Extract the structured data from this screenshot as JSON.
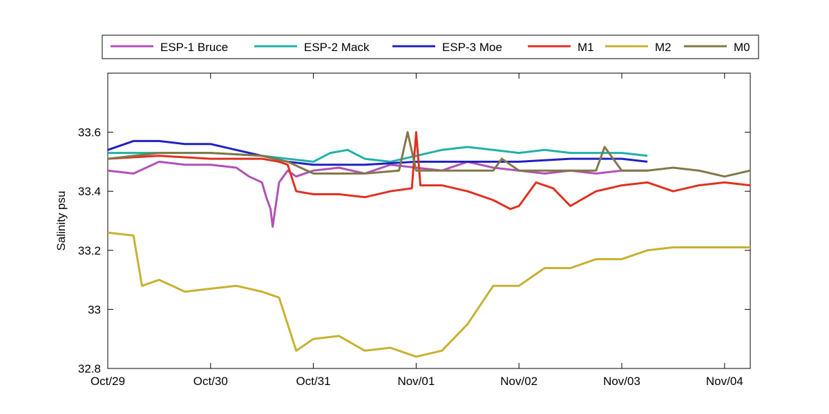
{
  "chart_data": {
    "type": "line",
    "title": "",
    "xlabel": "",
    "ylabel": "Salinity psu",
    "xlim": [
      "2008-10-29T00:00",
      "2008-11-04T06:00"
    ],
    "ylim": [
      32.8,
      33.8
    ],
    "yticks": [
      32.8,
      33,
      33.2,
      33.4,
      33.6
    ],
    "ytick_labels": [
      "32.8",
      "33",
      "33.2",
      "33.4",
      "33.6"
    ],
    "xticks": [
      "2008-10-29T00:00",
      "2008-10-30T00:00",
      "2008-10-31T00:00",
      "2008-11-01T00:00",
      "2008-11-02T00:00",
      "2008-11-03T00:00",
      "2008-11-04T00:00"
    ],
    "xtick_labels": [
      "Oct/29",
      "Oct/30",
      "Oct/31",
      "Nov/01",
      "Nov/02",
      "Nov/03",
      "Nov/04"
    ],
    "grid": false,
    "legend": "top, horizontal, outside plot",
    "series": [
      {
        "name": "ESP-1 Bruce",
        "color": "#b050b8",
        "x": [
          "2008-10-29T00:00",
          "2008-10-29T06:00",
          "2008-10-29T12:00",
          "2008-10-29T18:00",
          "2008-10-30T00:00",
          "2008-10-30T06:00",
          "2008-10-30T09:00",
          "2008-10-30T12:00",
          "2008-10-30T13:00",
          "2008-10-30T14:00",
          "2008-10-30T14:30",
          "2008-10-30T15:00",
          "2008-10-30T16:00",
          "2008-10-30T18:00",
          "2008-10-30T20:00",
          "2008-10-31T00:00",
          "2008-10-31T06:00",
          "2008-10-31T12:00",
          "2008-10-31T18:00",
          "2008-11-01T00:00",
          "2008-11-01T06:00",
          "2008-11-01T12:00",
          "2008-11-01T18:00",
          "2008-11-02T00:00",
          "2008-11-02T06:00",
          "2008-11-02T12:00",
          "2008-11-02T18:00",
          "2008-11-03T00:00",
          "2008-11-03T06:00"
        ],
        "y": [
          33.47,
          33.46,
          33.5,
          33.49,
          33.49,
          33.48,
          33.45,
          33.43,
          33.38,
          33.34,
          33.28,
          33.33,
          33.43,
          33.47,
          33.45,
          33.47,
          33.48,
          33.46,
          33.49,
          33.48,
          33.47,
          33.5,
          33.48,
          33.47,
          33.46,
          33.47,
          33.46,
          33.47,
          33.47
        ]
      },
      {
        "name": "ESP-2 Mack",
        "color": "#20b0a8",
        "x": [
          "2008-10-29T00:00",
          "2008-10-29T12:00",
          "2008-10-30T00:00",
          "2008-10-30T12:00",
          "2008-10-30T18:00",
          "2008-10-31T00:00",
          "2008-10-31T04:00",
          "2008-10-31T08:00",
          "2008-10-31T12:00",
          "2008-10-31T18:00",
          "2008-11-01T00:00",
          "2008-11-01T06:00",
          "2008-11-01T12:00",
          "2008-11-01T18:00",
          "2008-11-02T00:00",
          "2008-11-02T06:00",
          "2008-11-02T12:00",
          "2008-11-02T18:00",
          "2008-11-03T00:00",
          "2008-11-03T06:00"
        ],
        "y": [
          33.53,
          33.53,
          33.53,
          33.52,
          33.51,
          33.5,
          33.53,
          33.54,
          33.51,
          33.5,
          33.52,
          33.54,
          33.55,
          33.54,
          33.53,
          33.54,
          33.53,
          33.53,
          33.53,
          33.52
        ]
      },
      {
        "name": "ESP-3 Moe",
        "color": "#2020c0",
        "x": [
          "2008-10-29T00:00",
          "2008-10-29T06:00",
          "2008-10-29T12:00",
          "2008-10-29T18:00",
          "2008-10-30T00:00",
          "2008-10-30T06:00",
          "2008-10-30T12:00",
          "2008-10-30T18:00",
          "2008-10-31T00:00",
          "2008-10-31T12:00",
          "2008-11-01T00:00",
          "2008-11-01T12:00",
          "2008-11-02T00:00",
          "2008-11-02T12:00",
          "2008-11-03T00:00",
          "2008-11-03T06:00"
        ],
        "y": [
          33.54,
          33.57,
          33.57,
          33.56,
          33.56,
          33.54,
          33.52,
          33.5,
          33.49,
          33.49,
          33.5,
          33.5,
          33.5,
          33.51,
          33.51,
          33.5
        ]
      },
      {
        "name": "M1",
        "color": "#e03020",
        "x": [
          "2008-10-29T00:00",
          "2008-10-29T12:00",
          "2008-10-30T00:00",
          "2008-10-30T12:00",
          "2008-10-30T16:00",
          "2008-10-30T18:00",
          "2008-10-30T20:00",
          "2008-10-31T00:00",
          "2008-10-31T06:00",
          "2008-10-31T12:00",
          "2008-10-31T18:00",
          "2008-10-31T23:00",
          "2008-11-01T00:00",
          "2008-11-01T01:00",
          "2008-11-01T02:00",
          "2008-11-01T06:00",
          "2008-11-01T12:00",
          "2008-11-01T18:00",
          "2008-11-01T22:00",
          "2008-11-02T00:00",
          "2008-11-02T04:00",
          "2008-11-02T08:00",
          "2008-11-02T12:00",
          "2008-11-02T18:00",
          "2008-11-03T00:00",
          "2008-11-03T06:00",
          "2008-11-03T12:00",
          "2008-11-03T18:00",
          "2008-11-04T00:00",
          "2008-11-04T06:00"
        ],
        "y": [
          33.51,
          33.52,
          33.51,
          33.51,
          33.5,
          33.49,
          33.4,
          33.39,
          33.39,
          33.38,
          33.4,
          33.41,
          33.6,
          33.42,
          33.42,
          33.42,
          33.4,
          33.37,
          33.34,
          33.35,
          33.43,
          33.41,
          33.35,
          33.4,
          33.42,
          33.43,
          33.4,
          33.42,
          33.43,
          33.42
        ]
      },
      {
        "name": "M2",
        "color": "#c8b030",
        "x": [
          "2008-10-29T00:00",
          "2008-10-29T06:00",
          "2008-10-29T08:00",
          "2008-10-29T12:00",
          "2008-10-29T18:00",
          "2008-10-30T00:00",
          "2008-10-30T06:00",
          "2008-10-30T12:00",
          "2008-10-30T16:00",
          "2008-10-30T20:00",
          "2008-10-31T00:00",
          "2008-10-31T06:00",
          "2008-10-31T12:00",
          "2008-10-31T18:00",
          "2008-11-01T00:00",
          "2008-11-01T06:00",
          "2008-11-01T12:00",
          "2008-11-01T18:00",
          "2008-11-02T00:00",
          "2008-11-02T06:00",
          "2008-11-02T12:00",
          "2008-11-02T18:00",
          "2008-11-03T00:00",
          "2008-11-03T06:00",
          "2008-11-03T12:00",
          "2008-11-04T00:00",
          "2008-11-04T06:00"
        ],
        "y": [
          33.26,
          33.25,
          33.08,
          33.1,
          33.06,
          33.07,
          33.08,
          33.06,
          33.04,
          32.86,
          32.9,
          32.91,
          32.86,
          32.87,
          32.84,
          32.86,
          32.95,
          33.08,
          33.08,
          33.14,
          33.14,
          33.17,
          33.17,
          33.2,
          33.21,
          33.21,
          33.21
        ]
      },
      {
        "name": "M0",
        "color": "#807848",
        "x": [
          "2008-10-29T00:00",
          "2008-10-29T12:00",
          "2008-10-30T00:00",
          "2008-10-30T12:00",
          "2008-10-30T18:00",
          "2008-10-31T00:00",
          "2008-10-31T12:00",
          "2008-10-31T20:00",
          "2008-10-31T22:00",
          "2008-11-01T00:00",
          "2008-11-01T06:00",
          "2008-11-01T12:00",
          "2008-11-01T18:00",
          "2008-11-01T20:00",
          "2008-11-02T00:00",
          "2008-11-02T06:00",
          "2008-11-02T12:00",
          "2008-11-02T18:00",
          "2008-11-02T20:00",
          "2008-11-03T00:00",
          "2008-11-03T06:00",
          "2008-11-03T12:00",
          "2008-11-03T18:00",
          "2008-11-04T00:00",
          "2008-11-04T06:00"
        ],
        "y": [
          33.51,
          33.53,
          33.53,
          33.52,
          33.5,
          33.46,
          33.46,
          33.47,
          33.6,
          33.47,
          33.47,
          33.47,
          33.47,
          33.51,
          33.47,
          33.47,
          33.47,
          33.47,
          33.55,
          33.47,
          33.47,
          33.48,
          33.47,
          33.45,
          33.47
        ]
      }
    ]
  }
}
